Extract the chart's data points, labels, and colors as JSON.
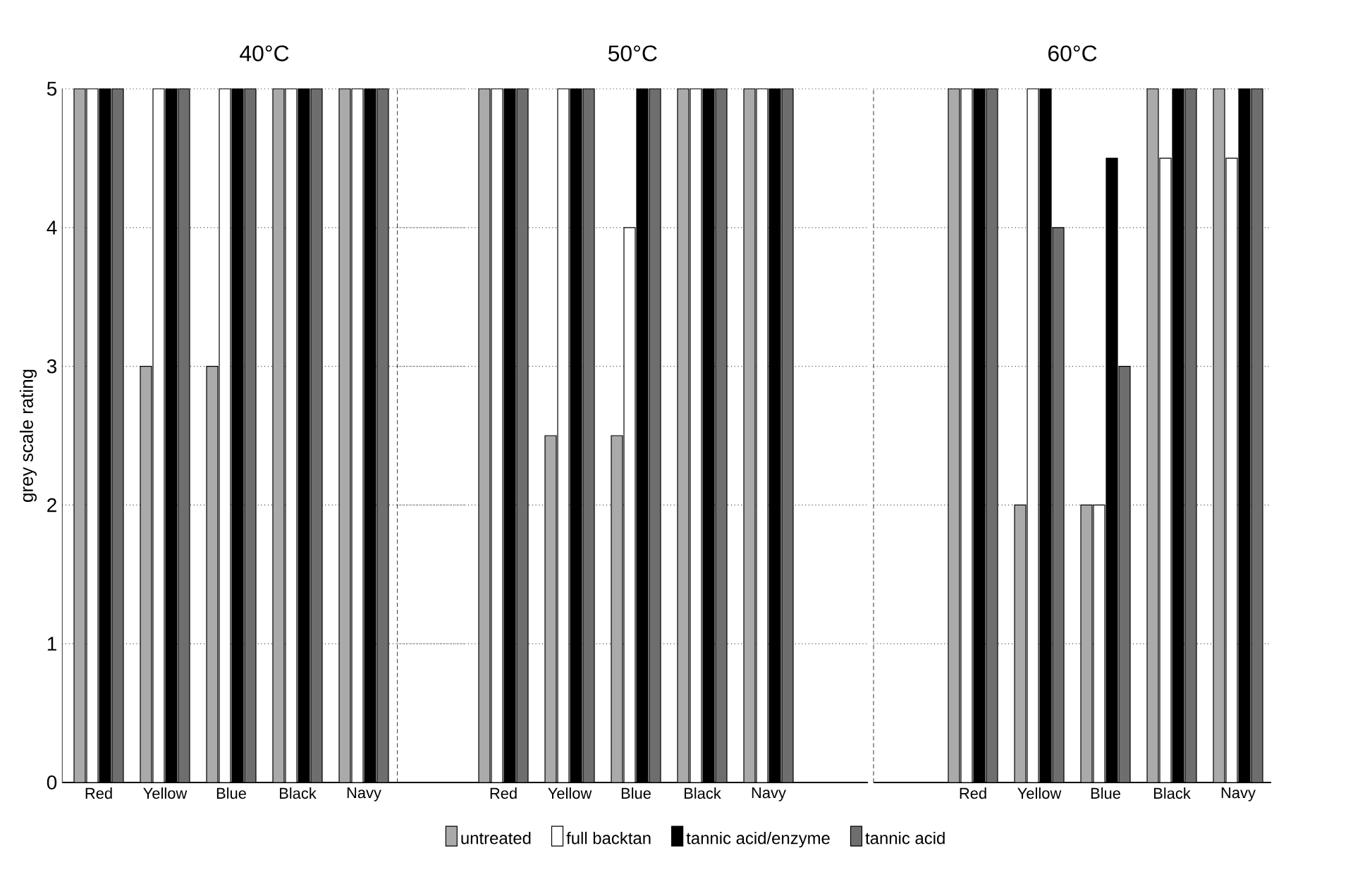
{
  "chart_data": [
    {
      "type": "bar",
      "title": "40°C",
      "ylabel": "grey scale rating",
      "categories": [
        "Red",
        "Yellow",
        "Blue",
        "Black",
        "Navy"
      ],
      "ylim": [
        0,
        5
      ],
      "yticks": [
        0,
        1,
        2,
        3,
        4,
        5
      ],
      "grid": "y",
      "legend": "bottom",
      "series": [
        {
          "name": "untreated",
          "color": "#aaaaaa",
          "values": [
            5,
            3,
            3,
            5,
            5
          ]
        },
        {
          "name": "full backtan",
          "color": "#ffffff",
          "values": [
            5,
            5,
            5,
            5,
            5
          ]
        },
        {
          "name": "tannic acid/enzyme",
          "color": "#000000",
          "values": [
            5,
            5,
            5,
            5,
            5
          ]
        },
        {
          "name": "tannic acid",
          "color": "#6e6e6e",
          "values": [
            5,
            5,
            5,
            5,
            5
          ]
        }
      ]
    },
    {
      "type": "bar",
      "title": "50°C",
      "categories": [
        "Red",
        "Yellow",
        "Blue",
        "Black",
        "Navy"
      ],
      "ylim": [
        0,
        5
      ],
      "yticks": [
        0,
        1,
        2,
        3,
        4,
        5
      ],
      "grid": "y",
      "tick_labels": "x",
      "series": [
        {
          "color": "#aaaaaa",
          "values": [
            5,
            2.5,
            2.5,
            5,
            5
          ]
        },
        {
          "color": "#ffffff",
          "values": [
            5,
            5,
            4,
            5,
            5
          ]
        },
        {
          "color": "#000000",
          "values": [
            5,
            5,
            5,
            5,
            5
          ]
        },
        {
          "color": "#6e6e6e",
          "values": [
            5,
            5,
            5,
            5,
            5
          ]
        }
      ]
    },
    {
      "type": "bar",
      "title": "60°C",
      "categories": [
        "Red",
        "Yellow",
        "Blue",
        "Black",
        "Navy"
      ],
      "ylim": [
        0,
        5
      ],
      "yticks": [
        0,
        1,
        2,
        3,
        4,
        5
      ],
      "grid": "y",
      "tick_labels": "x",
      "series": [
        {
          "color": "#aaaaaa",
          "values": [
            5,
            2,
            2,
            5,
            5
          ]
        },
        {
          "color": "#ffffff",
          "values": [
            5,
            5,
            2,
            4.5,
            4.5
          ]
        },
        {
          "color": "#000000",
          "values": [
            5,
            5,
            4.5,
            5,
            5
          ]
        },
        {
          "color": "#6e6e6e",
          "values": [
            5,
            4,
            3,
            5,
            5
          ]
        }
      ]
    }
  ]
}
